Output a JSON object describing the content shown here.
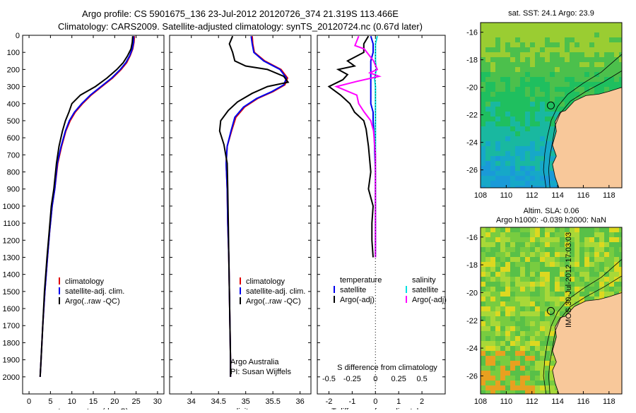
{
  "title_line1": "Argo profile: CS 5901675_136 23-Jul-2012 20120726_374 21.319S 113.466E",
  "title_line2": "Climatology: CARS2009. Satellite-adjusted climatology: synTS_20120724.nc (0.67d later)",
  "colors": {
    "climatology": "#e00000",
    "satellite_adj": "#0000ee",
    "argo": "#000000",
    "salinity_sat": "#00e0e0",
    "salinity_argo": "#ff00ff",
    "land": "#f8c89a"
  },
  "chart_data": [
    {
      "type": "line",
      "name": "temperature",
      "xlabel": "temperature (deg C)",
      "ylabel": "",
      "xlim": [
        -1.5,
        31.5
      ],
      "ylim": [
        2100,
        0
      ],
      "xticks": [
        "0",
        "5",
        "10",
        "15",
        "20",
        "25",
        "30"
      ],
      "yticks": [
        "0",
        "100",
        "200",
        "300",
        "400",
        "500",
        "600",
        "700",
        "800",
        "900",
        "1000",
        "1100",
        "1200",
        "1300",
        "1400",
        "1500",
        "1600",
        "1700",
        "1800",
        "1900",
        "2000"
      ],
      "legend": [
        "climatology",
        "satellite-adj. clim.",
        "Argo(..raw -QC)"
      ],
      "series": [
        {
          "name": "climatology",
          "points": [
            [
              24.6,
              5
            ],
            [
              24.5,
              40
            ],
            [
              24.2,
              80
            ],
            [
              23.6,
              120
            ],
            [
              22.8,
              160
            ],
            [
              21.5,
              200
            ],
            [
              19.5,
              250
            ],
            [
              17.0,
              300
            ],
            [
              14.5,
              350
            ],
            [
              12.5,
              400
            ],
            [
              10.8,
              450
            ],
            [
              9.6,
              500
            ],
            [
              8.6,
              560
            ],
            [
              7.6,
              650
            ],
            [
              6.7,
              750
            ],
            [
              6.0,
              900
            ],
            [
              5.4,
              1000
            ],
            [
              4.8,
              1150
            ],
            [
              4.3,
              1300
            ],
            [
              3.7,
              1500
            ],
            [
              3.2,
              1700
            ],
            [
              2.8,
              1900
            ],
            [
              2.6,
              2000
            ]
          ]
        },
        {
          "name": "satellite-adj. clim.",
          "points": [
            [
              24.4,
              5
            ],
            [
              24.4,
              40
            ],
            [
              24.1,
              80
            ],
            [
              23.5,
              120
            ],
            [
              22.6,
              160
            ],
            [
              21.3,
              200
            ],
            [
              19.3,
              250
            ],
            [
              16.8,
              300
            ],
            [
              14.3,
              350
            ],
            [
              12.3,
              400
            ],
            [
              10.6,
              450
            ],
            [
              9.4,
              500
            ],
            [
              8.5,
              560
            ],
            [
              7.5,
              650
            ],
            [
              6.6,
              750
            ],
            [
              6.0,
              900
            ],
            [
              5.4,
              1000
            ],
            [
              4.8,
              1150
            ],
            [
              4.3,
              1300
            ],
            [
              3.7,
              1500
            ],
            [
              3.2,
              1700
            ],
            [
              2.8,
              1900
            ],
            [
              2.6,
              2000
            ]
          ]
        },
        {
          "name": "Argo(..raw -QC)",
          "points": [
            [
              24.2,
              5
            ],
            [
              24.1,
              40
            ],
            [
              23.8,
              80
            ],
            [
              23.0,
              120
            ],
            [
              22.0,
              160
            ],
            [
              20.5,
              200
            ],
            [
              18.2,
              250
            ],
            [
              15.5,
              300
            ],
            [
              12.0,
              350
            ],
            [
              10.0,
              400
            ],
            [
              9.3,
              450
            ],
            [
              8.5,
              500
            ],
            [
              7.8,
              560
            ],
            [
              7.0,
              650
            ],
            [
              6.4,
              750
            ],
            [
              5.8,
              900
            ],
            [
              5.2,
              1000
            ],
            [
              4.7,
              1150
            ],
            [
              4.2,
              1300
            ],
            [
              3.6,
              1500
            ],
            [
              3.2,
              1700
            ],
            [
              2.8,
              1900
            ],
            [
              2.6,
              2000
            ]
          ]
        }
      ]
    },
    {
      "type": "line",
      "name": "salinity",
      "xlabel": "salinity",
      "xlim": [
        33.6,
        36.2
      ],
      "ylim": [
        2100,
        0
      ],
      "xticks": [
        "34",
        "34.5",
        "35",
        "35.5",
        "36"
      ],
      "legend": [
        "climatology",
        "satellite-adj. clim.",
        "Argo(..raw -QC)"
      ],
      "annotation": [
        "Argo Australia",
        "PI: Susan Wijffels"
      ],
      "series": [
        {
          "name": "climatology",
          "points": [
            [
              35.12,
              5
            ],
            [
              35.13,
              50
            ],
            [
              35.16,
              100
            ],
            [
              35.35,
              150
            ],
            [
              35.65,
              200
            ],
            [
              35.77,
              250
            ],
            [
              35.72,
              290
            ],
            [
              35.5,
              330
            ],
            [
              35.22,
              370
            ],
            [
              34.98,
              420
            ],
            [
              34.82,
              480
            ],
            [
              34.74,
              560
            ],
            [
              34.66,
              650
            ],
            [
              34.64,
              750
            ],
            [
              34.66,
              900
            ],
            [
              34.67,
              1100
            ],
            [
              34.69,
              1300
            ],
            [
              34.7,
              1500
            ],
            [
              34.71,
              1700
            ],
            [
              34.72,
              1900
            ],
            [
              34.72,
              2000
            ]
          ]
        },
        {
          "name": "satellite-adj. clim.",
          "points": [
            [
              35.1,
              5
            ],
            [
              35.12,
              50
            ],
            [
              35.15,
              100
            ],
            [
              35.33,
              150
            ],
            [
              35.63,
              200
            ],
            [
              35.75,
              250
            ],
            [
              35.7,
              290
            ],
            [
              35.48,
              330
            ],
            [
              35.2,
              370
            ],
            [
              34.96,
              420
            ],
            [
              34.8,
              480
            ],
            [
              34.73,
              560
            ],
            [
              34.66,
              650
            ],
            [
              34.64,
              750
            ],
            [
              34.66,
              900
            ],
            [
              34.67,
              1100
            ],
            [
              34.69,
              1300
            ],
            [
              34.7,
              1500
            ],
            [
              34.71,
              1700
            ],
            [
              34.72,
              1900
            ],
            [
              34.72,
              2000
            ]
          ]
        },
        {
          "name": "Argo(..raw -QC)",
          "points": [
            [
              34.76,
              5
            ],
            [
              34.7,
              50
            ],
            [
              34.76,
              100
            ],
            [
              34.8,
              150
            ],
            [
              35.0,
              180
            ],
            [
              35.4,
              200
            ],
            [
              35.7,
              240
            ],
            [
              35.78,
              275
            ],
            [
              35.4,
              300
            ],
            [
              35.12,
              340
            ],
            [
              34.85,
              390
            ],
            [
              34.68,
              440
            ],
            [
              34.54,
              500
            ],
            [
              34.52,
              560
            ],
            [
              34.6,
              640
            ],
            [
              34.66,
              750
            ],
            [
              34.67,
              900
            ],
            [
              34.68,
              1100
            ],
            [
              34.69,
              1300
            ],
            [
              34.7,
              1500
            ],
            [
              34.71,
              1700
            ],
            [
              34.72,
              1900
            ],
            [
              34.72,
              2000
            ]
          ]
        }
      ]
    },
    {
      "type": "line",
      "name": "difference",
      "xlabel_top": "S difference from climatology",
      "xlabel": "T difference from climatology",
      "xlim": [
        -2.5,
        3.0
      ],
      "ylim": [
        2100,
        0
      ],
      "xticks_bottom": [
        "-2",
        "-1",
        "0",
        "1",
        "2"
      ],
      "xticks_top": [
        "-0.5",
        "-0.25",
        "0",
        "0.25",
        "0.5"
      ],
      "legend_temperature": [
        "temperature",
        "satellite",
        "Argo(-adj)"
      ],
      "legend_salinity": [
        "salinity",
        "satellite",
        "Argo(-adj)"
      ],
      "series": [
        {
          "name": "T satellite",
          "points": [
            [
              -0.2,
              5
            ],
            [
              -0.1,
              50
            ],
            [
              -0.1,
              100
            ],
            [
              -0.2,
              150
            ],
            [
              -0.2,
              200
            ],
            [
              -0.2,
              250
            ],
            [
              -0.2,
              300
            ],
            [
              -0.2,
              350
            ],
            [
              -0.2,
              400
            ],
            [
              -0.1,
              450
            ],
            [
              -0.1,
              500
            ],
            [
              -0.05,
              600
            ],
            [
              0,
              800
            ],
            [
              0,
              1000
            ],
            [
              0,
              1300
            ]
          ]
        },
        {
          "name": "T Argo(-adj)",
          "points": [
            [
              -0.3,
              5
            ],
            [
              -0.5,
              50
            ],
            [
              -0.5,
              100
            ],
            [
              -1.2,
              150
            ],
            [
              -0.9,
              180
            ],
            [
              -1.6,
              200
            ],
            [
              -1.2,
              230
            ],
            [
              -1.4,
              260
            ],
            [
              -2.0,
              300
            ],
            [
              -1.5,
              350
            ],
            [
              -1.1,
              400
            ],
            [
              -0.9,
              450
            ],
            [
              -0.5,
              500
            ],
            [
              -0.4,
              550
            ],
            [
              -0.3,
              650
            ],
            [
              -0.2,
              800
            ],
            [
              -0.3,
              900
            ],
            [
              -0.1,
              1000
            ],
            [
              -0.15,
              1100
            ],
            [
              -0.15,
              1200
            ],
            [
              -0.1,
              1300
            ]
          ]
        },
        {
          "name": "S satellite",
          "points": [
            [
              0.02,
              5
            ],
            [
              0.0,
              50
            ],
            [
              0.0,
              100
            ],
            [
              0.0,
              150
            ],
            [
              0.01,
              200
            ],
            [
              -0.01,
              250
            ],
            [
              0.0,
              300
            ],
            [
              0.0,
              400
            ],
            [
              0.0,
              600
            ],
            [
              0.0,
              800
            ],
            [
              0.0,
              1000
            ],
            [
              0.0,
              1300
            ]
          ]
        },
        {
          "name": "S Argo(-adj)",
          "points": [
            [
              -0.18,
              5
            ],
            [
              -0.22,
              60
            ],
            [
              -0.12,
              80
            ],
            [
              -0.02,
              150
            ],
            [
              0.02,
              200
            ],
            [
              -0.06,
              220
            ],
            [
              0.04,
              240
            ],
            [
              -0.2,
              270
            ],
            [
              -0.42,
              300
            ],
            [
              -0.2,
              350
            ],
            [
              -0.18,
              400
            ],
            [
              -0.12,
              450
            ],
            [
              -0.05,
              500
            ],
            [
              -0.02,
              560
            ],
            [
              0.0,
              700
            ],
            [
              0.0,
              900
            ],
            [
              0.0,
              1300
            ]
          ]
        }
      ]
    },
    {
      "type": "heatmap",
      "name": "sst_map",
      "title": "sat. SST: 24.1  Argo: 23.9",
      "xticks": [
        "108",
        "110",
        "112",
        "114",
        "116",
        "118"
      ],
      "yticks": [
        "-16",
        "-18",
        "-20",
        "-22",
        "-24",
        "-26"
      ],
      "xlim": [
        108,
        119
      ],
      "ylim": [
        -27.3,
        -15.3
      ],
      "marker": [
        113.47,
        -21.32
      ]
    },
    {
      "type": "heatmap",
      "name": "sla_map",
      "title_line1": "Altim. SLA: 0.06",
      "title_line2": "Argo h1000: -0.039 h2000: NaN",
      "xticks": [
        "108",
        "110",
        "112",
        "114",
        "116",
        "118"
      ],
      "yticks": [
        "-16",
        "-18",
        "-20",
        "-22",
        "-24",
        "-26"
      ],
      "xlim": [
        108,
        119
      ],
      "ylim": [
        -27.3,
        -15.3
      ],
      "marker": [
        113.47,
        -21.32
      ]
    }
  ],
  "side_label": "IMOS 30-Jul-2012 17:03:03"
}
